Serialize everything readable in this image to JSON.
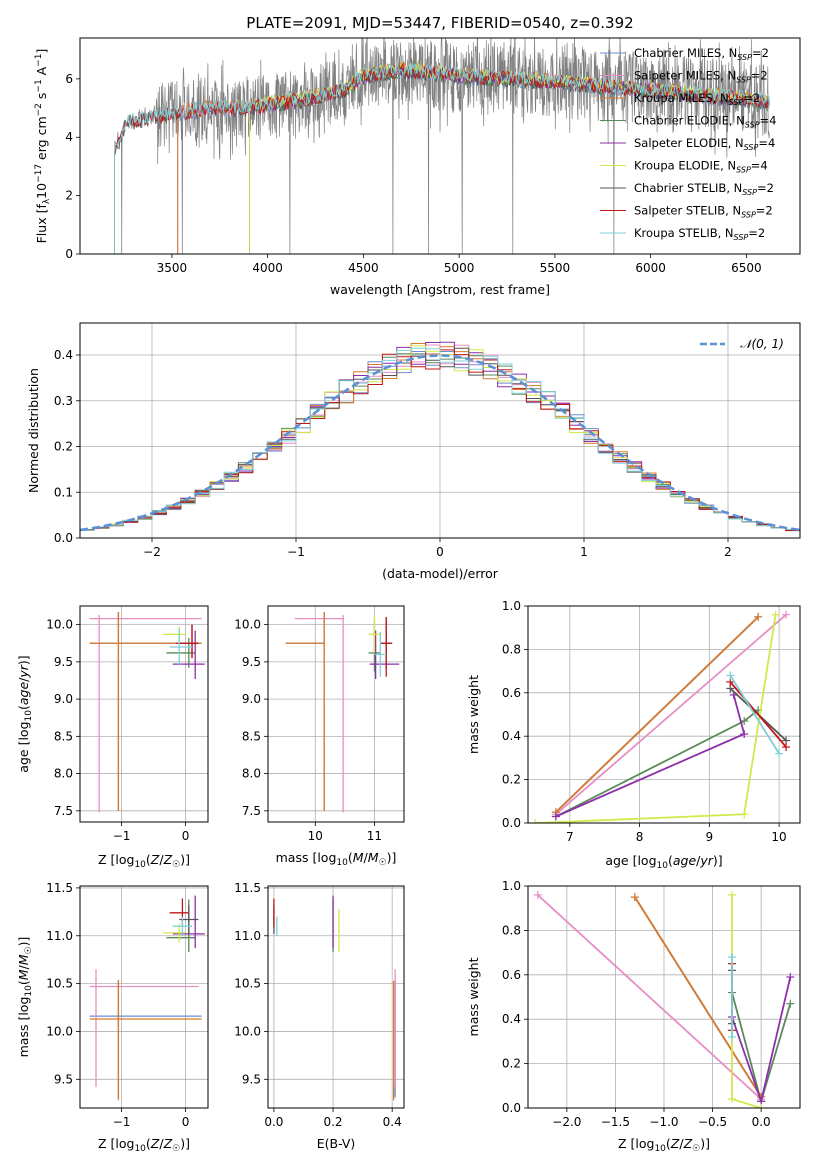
{
  "figure_title": "PLATE=2091, MJD=53447, FIBERID=0540, z=0.392",
  "colors": {
    "Chabrier MILES": "#6c8ed0",
    "Salpeter MILES": "#e88ec4",
    "Kroupa MILES": "#d97a2b",
    "Chabrier ELODIE": "#5a8a5a",
    "Salpeter ELODIE": "#8e2faa",
    "Kroupa ELODIE": "#d4e84a",
    "Chabrier STELIB": "#555555",
    "Salpeter STELIB": "#c01818",
    "Kroupa STELIB": "#7fd0d8"
  },
  "chart_data": [
    {
      "id": "spectrum",
      "type": "line",
      "title": "PLATE=2091, MJD=53447, FIBERID=0540, z=0.392",
      "xlabel": "wavelength [Angstrom, rest frame]",
      "ylabel": "Flux [f_λ 10^-17 erg cm^-2 s^-1 A^-1]",
      "xlim": [
        3020,
        6780
      ],
      "ylim": [
        0,
        7.4
      ],
      "xticks": [
        3500,
        4000,
        4500,
        5000,
        5500,
        6000,
        6500
      ],
      "yticks": [
        0,
        2,
        4,
        6
      ],
      "grid": false,
      "legend_position": "top-right",
      "legend": [
        {
          "label": "Chabrier MILES, N",
          "sub": "SSP",
          "suffix": "=2"
        },
        {
          "label": "Salpeter MILES, N",
          "sub": "SSP",
          "suffix": "=2"
        },
        {
          "label": "Kroupa MILES, N",
          "sub": "SSP",
          "suffix": "=2"
        },
        {
          "label": "Chabrier ELODIE, N",
          "sub": "SSP",
          "suffix": "=4"
        },
        {
          "label": "Salpeter ELODIE, N",
          "sub": "SSP",
          "suffix": "=4"
        },
        {
          "label": "Kroupa ELODIE, N",
          "sub": "SSP",
          "suffix": "=4"
        },
        {
          "label": "Chabrier STELIB, N",
          "sub": "SSP",
          "suffix": "=2"
        },
        {
          "label": "Salpeter STELIB, N",
          "sub": "SSP",
          "suffix": "=2"
        },
        {
          "label": "Kroupa STELIB, N",
          "sub": "SSP",
          "suffix": "=2"
        }
      ],
      "data_series": {
        "name": "data",
        "color": "#808080",
        "x_range": [
          3200,
          6620
        ],
        "continuum": [
          [
            3200,
            3.5
          ],
          [
            3260,
            4.5
          ],
          [
            3400,
            4.7
          ],
          [
            3500,
            4.8
          ],
          [
            3700,
            5.0
          ],
          [
            3900,
            5.0
          ],
          [
            4000,
            5.1
          ],
          [
            4200,
            5.3
          ],
          [
            4400,
            5.6
          ],
          [
            4500,
            6.1
          ],
          [
            4700,
            6.3
          ],
          [
            5000,
            6.1
          ],
          [
            5500,
            5.9
          ],
          [
            6000,
            5.6
          ],
          [
            6500,
            5.3
          ],
          [
            6620,
            5.2
          ]
        ],
        "noise_amplitude": 1.3
      },
      "model_continuum": [
        [
          3200,
          3.5
        ],
        [
          3260,
          4.5
        ],
        [
          3400,
          4.7
        ],
        [
          3500,
          4.8
        ],
        [
          3700,
          5.0
        ],
        [
          3900,
          5.0
        ],
        [
          4000,
          5.1
        ],
        [
          4200,
          5.3
        ],
        [
          4400,
          5.6
        ],
        [
          4500,
          6.1
        ],
        [
          4700,
          6.3
        ],
        [
          5000,
          6.1
        ],
        [
          5500,
          5.9
        ],
        [
          6000,
          5.6
        ],
        [
          6500,
          5.3
        ],
        [
          6620,
          5.2
        ]
      ],
      "model_start": {
        "Chabrier MILES": 3530,
        "Salpeter MILES": 3530,
        "Kroupa MILES": 3530,
        "Chabrier ELODIE": 3905,
        "Salpeter ELODIE": 3905,
        "Kroupa ELODIE": 3905,
        "Chabrier STELIB": 3200,
        "Salpeter STELIB": 3200,
        "Kroupa STELIB": 3200
      }
    },
    {
      "id": "residuals",
      "type": "line",
      "xlabel": "(data-model)/error",
      "ylabel": "Normed distribution",
      "xlim": [
        -2.5,
        2.5
      ],
      "ylim": [
        0,
        0.47
      ],
      "xticks": [
        -2,
        -1,
        0,
        1,
        2
      ],
      "yticks": [
        0.0,
        0.1,
        0.2,
        0.3,
        0.4
      ],
      "grid": true,
      "legend_position": "top-right",
      "legend": [
        {
          "label": "𝒩(0, 1)"
        }
      ],
      "reference": {
        "name": "𝒩(0, 1)",
        "color": "#5b8fd6",
        "style": "dashed",
        "mean": 0,
        "sigma": 1
      },
      "bin_width": 0.1,
      "hist_series": [
        "Chabrier MILES",
        "Salpeter MILES",
        "Kroupa MILES",
        "Chabrier ELODIE",
        "Salpeter ELODIE",
        "Kroupa ELODIE",
        "Chabrier STELIB",
        "Salpeter STELIB",
        "Kroupa STELIB"
      ]
    },
    {
      "id": "age_vs_Z",
      "type": "scatter",
      "xlabel": "Z [log10(Z/Z☉)]",
      "ylabel": "age  [log10(age/yr)]",
      "xlim": [
        -1.65,
        0.35
      ],
      "ylim": [
        7.35,
        10.25
      ],
      "xticks": [
        -1,
        0
      ],
      "yticks": [
        7.5,
        8.0,
        8.5,
        9.0,
        9.5,
        10.0
      ],
      "grid": true,
      "points": [
        {
          "series": "Chabrier MILES",
          "x": -1.05,
          "xerr": [
            0.45,
            1.3
          ],
          "y": 9.75,
          "yerr": [
            2.25,
            0.42
          ]
        },
        {
          "series": "Salpeter MILES",
          "x": -1.35,
          "xerr": [
            0.15,
            1.6
          ],
          "y": 10.08,
          "yerr": [
            2.6,
            0.05
          ]
        },
        {
          "series": "Kroupa MILES",
          "x": -1.05,
          "xerr": [
            0.45,
            1.3
          ],
          "y": 9.75,
          "yerr": [
            2.25,
            0.42
          ]
        },
        {
          "series": "Chabrier ELODIE",
          "x": 0.05,
          "xerr": [
            0.35,
            0.1
          ],
          "y": 9.62,
          "yerr": [
            0.2,
            0.2
          ]
        },
        {
          "series": "Salpeter ELODIE",
          "x": 0.15,
          "xerr": [
            0.35,
            0.15
          ],
          "y": 9.47,
          "yerr": [
            0.2,
            0.45
          ]
        },
        {
          "series": "Kroupa ELODIE",
          "x": -0.1,
          "xerr": [
            0.25,
            0.1
          ],
          "y": 9.87,
          "yerr": [
            0.1,
            0.1
          ]
        },
        {
          "series": "Chabrier STELIB",
          "x": 0.1,
          "xerr": [
            0.2,
            0.1
          ],
          "y": 9.75,
          "yerr": [
            0.2,
            0.25
          ]
        },
        {
          "series": "Salpeter STELIB",
          "x": 0.1,
          "xerr": [
            0.25,
            0.1
          ],
          "y": 9.75,
          "yerr": [
            0.2,
            0.25
          ]
        },
        {
          "series": "Kroupa STELIB",
          "x": -0.1,
          "xerr": [
            0.15,
            0.2
          ],
          "y": 9.7,
          "yerr": [
            0.25,
            0.25
          ]
        }
      ]
    },
    {
      "id": "age_vs_mass",
      "type": "scatter",
      "xlabel": "mass [log10(M/M☉)]",
      "ylabel": "",
      "xlim": [
        9.2,
        11.5
      ],
      "ylim": [
        7.35,
        10.25
      ],
      "xticks": [
        10,
        11
      ],
      "yticks": [
        7.5,
        8.0,
        8.5,
        9.0,
        9.5,
        10.0
      ],
      "grid": true,
      "points": [
        {
          "series": "Chabrier MILES",
          "x": 10.15,
          "xerr": [
            0.65,
            0.0
          ],
          "y": 9.75,
          "yerr": [
            2.25,
            0.42
          ]
        },
        {
          "series": "Salpeter MILES",
          "x": 10.47,
          "xerr": [
            0.82,
            0.02
          ],
          "y": 10.08,
          "yerr": [
            2.6,
            0.05
          ]
        },
        {
          "series": "Kroupa MILES",
          "x": 10.15,
          "xerr": [
            0.65,
            0.0
          ],
          "y": 9.75,
          "yerr": [
            2.25,
            0.42
          ]
        },
        {
          "series": "Chabrier ELODIE",
          "x": 11.0,
          "xerr": [
            0.1,
            0.1
          ],
          "y": 9.62,
          "yerr": [
            0.25,
            0.45
          ]
        },
        {
          "series": "Salpeter ELODIE",
          "x": 11.02,
          "xerr": [
            0.1,
            0.4
          ],
          "y": 9.47,
          "yerr": [
            0.2,
            0.45
          ]
        },
        {
          "series": "Kroupa ELODIE",
          "x": 11.0,
          "xerr": [
            0.1,
            0.1
          ],
          "y": 9.87,
          "yerr": [
            0.25,
            0.25
          ]
        },
        {
          "series": "Chabrier STELIB",
          "x": 11.2,
          "xerr": [
            0.1,
            0.1
          ],
          "y": 9.75,
          "yerr": [
            0.35,
            0.35
          ]
        },
        {
          "series": "Salpeter STELIB",
          "x": 11.2,
          "xerr": [
            0.1,
            0.1
          ],
          "y": 9.75,
          "yerr": [
            0.45,
            0.35
          ]
        },
        {
          "series": "Kroupa STELIB",
          "x": 11.1,
          "xerr": [
            0.1,
            0.1
          ],
          "y": 9.6,
          "yerr": [
            0.3,
            0.3
          ]
        }
      ]
    },
    {
      "id": "weight_vs_age",
      "type": "line",
      "xlabel": "age  [log10(age/yr)]",
      "ylabel": "mass weight",
      "xlim": [
        6.4,
        10.3
      ],
      "ylim": [
        0,
        1.0
      ],
      "xticks": [
        7,
        8,
        9,
        10
      ],
      "yticks": [
        0.0,
        0.2,
        0.4,
        0.6,
        0.8,
        1.0
      ],
      "grid": true,
      "series": [
        {
          "name": "Chabrier MILES",
          "x": [
            6.8,
            9.7
          ],
          "y": [
            0.05,
            0.95
          ]
        },
        {
          "name": "Salpeter MILES",
          "x": [
            6.8,
            10.1
          ],
          "y": [
            0.04,
            0.96
          ]
        },
        {
          "name": "Kroupa MILES",
          "x": [
            6.8,
            9.7
          ],
          "y": [
            0.05,
            0.95
          ]
        },
        {
          "name": "Chabrier ELODIE",
          "x": [
            6.8,
            9.5,
            9.7
          ],
          "y": [
            0.03,
            0.47,
            0.52
          ]
        },
        {
          "name": "Salpeter ELODIE",
          "x": [
            6.8,
            9.5,
            9.35
          ],
          "y": [
            0.03,
            0.41,
            0.59
          ]
        },
        {
          "name": "Kroupa ELODIE",
          "x": [
            6.5,
            9.5,
            9.95
          ],
          "y": [
            0.0,
            0.04,
            0.96
          ]
        },
        {
          "name": "Chabrier STELIB",
          "x": [
            9.3,
            10.1
          ],
          "y": [
            0.62,
            0.38
          ]
        },
        {
          "name": "Salpeter STELIB",
          "x": [
            9.3,
            10.1
          ],
          "y": [
            0.65,
            0.35
          ]
        },
        {
          "name": "Kroupa STELIB",
          "x": [
            9.3,
            10.0
          ],
          "y": [
            0.68,
            0.32
          ]
        }
      ]
    },
    {
      "id": "mass_vs_Z",
      "type": "scatter",
      "xlabel": "Z [log10(Z/Z☉)]",
      "ylabel": "mass [log10(M/M☉)]",
      "xlim": [
        -1.65,
        0.35
      ],
      "ylim": [
        9.2,
        11.52
      ],
      "xticks": [
        -1,
        0
      ],
      "yticks": [
        9.5,
        10.0,
        10.5,
        11.0,
        11.5
      ],
      "grid": true,
      "points": [
        {
          "series": "Chabrier MILES",
          "x": -1.05,
          "xerr": [
            0.45,
            1.3
          ],
          "y": 10.16,
          "yerr": [
            0.85,
            0.38
          ]
        },
        {
          "series": "Salpeter MILES",
          "x": -1.4,
          "xerr": [
            0.1,
            1.6
          ],
          "y": 10.47,
          "yerr": [
            1.05,
            0.18
          ]
        },
        {
          "series": "Kroupa MILES",
          "x": -1.05,
          "xerr": [
            0.45,
            1.3
          ],
          "y": 10.13,
          "yerr": [
            0.85,
            0.4
          ]
        },
        {
          "series": "Chabrier ELODIE",
          "x": 0.05,
          "xerr": [
            0.35,
            0.1
          ],
          "y": 10.98,
          "yerr": [
            0.15,
            0.4
          ]
        },
        {
          "series": "Salpeter ELODIE",
          "x": 0.15,
          "xerr": [
            0.35,
            0.15
          ],
          "y": 11.02,
          "yerr": [
            0.15,
            0.4
          ]
        },
        {
          "series": "Kroupa ELODIE",
          "x": -0.1,
          "xerr": [
            0.25,
            0.1
          ],
          "y": 11.03,
          "yerr": [
            0.1,
            0.1
          ]
        },
        {
          "series": "Chabrier STELIB",
          "x": 0.05,
          "xerr": [
            0.15,
            0.15
          ],
          "y": 11.17,
          "yerr": [
            0.15,
            0.15
          ]
        },
        {
          "series": "Salpeter STELIB",
          "x": -0.05,
          "xerr": [
            0.2,
            0.1
          ],
          "y": 11.24,
          "yerr": [
            0.15,
            0.15
          ]
        },
        {
          "series": "Kroupa STELIB",
          "x": -0.05,
          "xerr": [
            0.15,
            0.15
          ],
          "y": 11.1,
          "yerr": [
            0.1,
            0.1
          ]
        }
      ]
    },
    {
      "id": "mass_vs_ebv",
      "type": "scatter",
      "xlabel": "E(B-V)",
      "ylabel": "",
      "xlim": [
        -0.02,
        0.44
      ],
      "ylim": [
        9.2,
        11.52
      ],
      "xticks": [
        0.0,
        0.2,
        0.4
      ],
      "yticks": [
        9.5,
        10.0,
        10.5,
        11.0,
        11.5
      ],
      "grid": true,
      "points": [
        {
          "series": "Chabrier MILES",
          "x": 0.41,
          "xerr": [
            0,
            0
          ],
          "y": 10.16,
          "yerr": [
            0.85,
            0.38
          ]
        },
        {
          "series": "Salpeter MILES",
          "x": 0.41,
          "xerr": [
            0,
            0
          ],
          "y": 10.47,
          "yerr": [
            1.05,
            0.18
          ]
        },
        {
          "series": "Kroupa MILES",
          "x": 0.405,
          "xerr": [
            0,
            0
          ],
          "y": 10.13,
          "yerr": [
            0.85,
            0.4
          ]
        },
        {
          "series": "Chabrier ELODIE",
          "x": 0.2,
          "xerr": [
            0,
            0
          ],
          "y": 10.98,
          "yerr": [
            0.15,
            0.4
          ]
        },
        {
          "series": "Salpeter ELODIE",
          "x": 0.2,
          "xerr": [
            0,
            0
          ],
          "y": 11.02,
          "yerr": [
            0.15,
            0.4
          ]
        },
        {
          "series": "Kroupa ELODIE",
          "x": 0.22,
          "xerr": [
            0,
            0
          ],
          "y": 11.03,
          "yerr": [
            0.2,
            0.25
          ]
        },
        {
          "series": "Chabrier STELIB",
          "x": 0.0,
          "xerr": [
            0,
            0
          ],
          "y": 11.17,
          "yerr": [
            0.15,
            0.15
          ]
        },
        {
          "series": "Salpeter STELIB",
          "x": 0.0,
          "xerr": [
            0,
            0
          ],
          "y": 11.24,
          "yerr": [
            0.15,
            0.15
          ]
        },
        {
          "series": "Kroupa STELIB",
          "x": 0.01,
          "xerr": [
            0,
            0
          ],
          "y": 11.1,
          "yerr": [
            0.1,
            0.1
          ]
        }
      ]
    },
    {
      "id": "weight_vs_Z",
      "type": "line",
      "xlabel": "Z [log10(Z/Z☉)]",
      "ylabel": "mass weight",
      "xlim": [
        -2.4,
        0.4
      ],
      "ylim": [
        0,
        1.0
      ],
      "xticks": [
        -2.0,
        -1.5,
        -1.0,
        -0.5,
        0.0
      ],
      "yticks": [
        0.0,
        0.2,
        0.4,
        0.6,
        0.8,
        1.0
      ],
      "grid": true,
      "series": [
        {
          "name": "Chabrier MILES",
          "x": [
            -1.3,
            0.0
          ],
          "y": [
            0.95,
            0.05
          ]
        },
        {
          "name": "Salpeter MILES",
          "x": [
            -2.3,
            0.0
          ],
          "y": [
            0.96,
            0.04
          ]
        },
        {
          "name": "Kroupa MILES",
          "x": [
            -1.3,
            0.0
          ],
          "y": [
            0.95,
            0.05
          ]
        },
        {
          "name": "Chabrier ELODIE",
          "x": [
            -0.3,
            0.0,
            0.3
          ],
          "y": [
            0.52,
            0.03,
            0.47
          ]
        },
        {
          "name": "Salpeter ELODIE",
          "x": [
            -0.3,
            0.0,
            0.3
          ],
          "y": [
            0.41,
            0.03,
            0.59
          ]
        },
        {
          "name": "Kroupa ELODIE",
          "x": [
            -0.3,
            -0.3,
            0.0
          ],
          "y": [
            0.96,
            0.04,
            0.0
          ]
        },
        {
          "name": "Chabrier STELIB",
          "x": [
            -0.3,
            -0.3
          ],
          "y": [
            0.62,
            0.38
          ]
        },
        {
          "name": "Salpeter STELIB",
          "x": [
            -0.3,
            -0.3
          ],
          "y": [
            0.65,
            0.35
          ]
        },
        {
          "name": "Kroupa STELIB",
          "x": [
            -0.3,
            -0.3
          ],
          "y": [
            0.68,
            0.32
          ]
        }
      ]
    }
  ]
}
